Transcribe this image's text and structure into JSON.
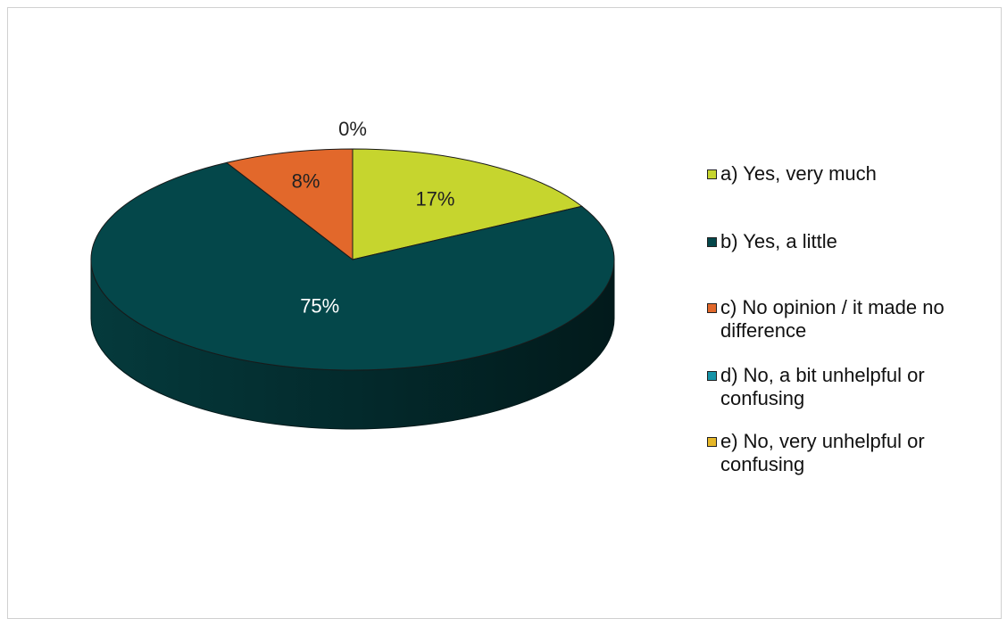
{
  "chart_data": {
    "type": "pie",
    "title": "",
    "categories": [
      "a) Yes, very much",
      "b) Yes, a little",
      "c) No opinion / it made no difference",
      "d) No, a bit unhelpful or confusing",
      "e) No, very unhelpful or confusing"
    ],
    "values": [
      17,
      75,
      8,
      0,
      0
    ],
    "value_labels": [
      "17%",
      "75%",
      "8%",
      "",
      "0%"
    ],
    "colors": [
      "#c6d52e",
      "#04474a",
      "#e2682b",
      "#1593a7",
      "#e5b728"
    ],
    "label_colors": [
      "#222222",
      "#ffffff",
      "#222222",
      "#222222",
      "#222222"
    ],
    "legend_position": "right",
    "style": "3d"
  }
}
